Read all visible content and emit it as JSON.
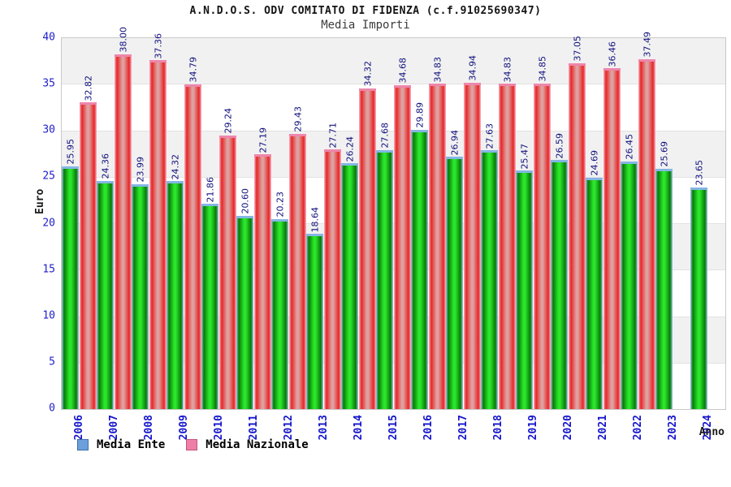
{
  "chart_data": {
    "type": "bar",
    "title": "A.N.D.O.S. ODV COMITATO DI FIDENZA (c.f.91025690347)",
    "subtitle": "Media Importi",
    "xlabel": "Anno",
    "ylabel": "Euro",
    "ylim": [
      0,
      40
    ],
    "ytick_step": 5,
    "grid": "alternating horizontal bands, light gray / white, 5-unit tall",
    "legend_position": "bottom-left",
    "value_label_rotation": "90deg, above each bar, format 2 decimals",
    "categories": [
      "2006",
      "2007",
      "2008",
      "2009",
      "2010",
      "2011",
      "2012",
      "2013",
      "2014",
      "2015",
      "2016",
      "2017",
      "2018",
      "2019",
      "2020",
      "2021",
      "2022",
      "2023",
      "2024"
    ],
    "series": [
      {
        "name": "Media Ente",
        "values": [
          25.95,
          24.36,
          23.99,
          24.32,
          21.86,
          20.6,
          20.23,
          18.64,
          26.24,
          27.68,
          29.89,
          26.94,
          27.63,
          25.47,
          26.59,
          24.69,
          26.45,
          25.69,
          23.65
        ],
        "bar_edge_color": "#067a06",
        "bar_mid_color": "#2be62b",
        "bar_cap_color": "#84b6e4",
        "bar_outline_color": "#9fc8ea",
        "legend_swatch_color": "#6ca0dc",
        "legend_swatch_border": "#3c6ea5"
      },
      {
        "name": "Media Nazionale",
        "values": [
          32.82,
          38.0,
          37.36,
          34.79,
          29.24,
          27.19,
          29.43,
          27.71,
          34.32,
          34.68,
          34.83,
          34.94,
          34.83,
          34.85,
          37.05,
          36.46,
          37.49,
          null,
          null
        ],
        "bar_edge_color": "#e82525",
        "bar_mid_color": "#dfa0a0",
        "bar_cap_color": "#ee86ab",
        "bar_outline_color": "#f5b8cb",
        "legend_swatch_color": "#ef7fa7",
        "legend_swatch_border": "#c05580"
      }
    ],
    "colors": {
      "plot_border": "#c9c9c9",
      "band_gray": "#f1f1f1",
      "band_white": "#ffffff",
      "ytick_text": "#2121cc",
      "year_text": "#1515cc",
      "value_label_text": "#10107e",
      "title_text": "#141414",
      "subtitle_text": "#3c3c3c"
    }
  }
}
